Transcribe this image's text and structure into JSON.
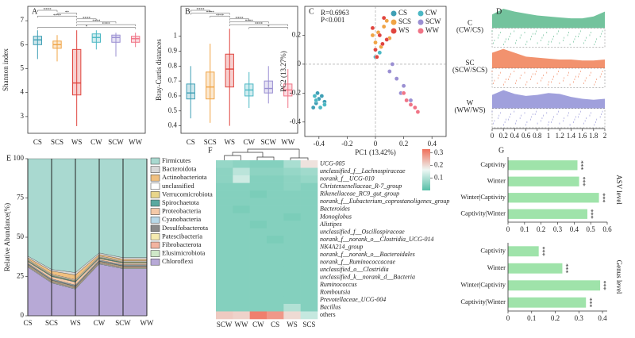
{
  "chart_data": [
    {
      "type": "box",
      "label": "A",
      "ylabel": "Shannon index",
      "categories": [
        "CS",
        "SCS",
        "WS",
        "CW",
        "SCW",
        "WW"
      ],
      "colors": [
        "#3f9fb5",
        "#f0a445",
        "#e0453f",
        "#4cb8c4",
        "#9a8fd2",
        "#f07486"
      ],
      "ylim": [
        2.3,
        7.6
      ],
      "yticks": [
        3,
        4,
        5,
        6,
        7
      ],
      "boxes": [
        {
          "low": 5.4,
          "q1": 6.0,
          "median": 6.2,
          "q3": 6.35,
          "high": 6.6
        },
        {
          "low": 5.3,
          "q1": 5.85,
          "median": 6.0,
          "q3": 6.15,
          "high": 6.4
        },
        {
          "low": 2.6,
          "q1": 3.9,
          "median": 4.4,
          "q3": 5.8,
          "high": 6.6
        },
        {
          "low": 5.8,
          "q1": 6.1,
          "median": 6.3,
          "q3": 6.45,
          "high": 6.6
        },
        {
          "low": 5.5,
          "q1": 6.1,
          "median": 6.3,
          "q3": 6.4,
          "high": 6.5
        },
        {
          "low": 5.9,
          "q1": 6.1,
          "median": 6.25,
          "q3": 6.35,
          "high": 6.5
        }
      ],
      "brackets": [
        {
          "between": [
            0,
            1
          ],
          "label": "****"
        },
        {
          "between": [
            1,
            2
          ],
          "label": "**"
        },
        {
          "between": [
            0,
            2
          ],
          "label": "****"
        },
        {
          "between": [
            2,
            3
          ],
          "label": "****"
        },
        {
          "between": [
            2,
            4
          ],
          "label": "****"
        },
        {
          "between": [
            2,
            5
          ],
          "label": "****"
        },
        {
          "between": [
            0,
            5
          ],
          "label": "*"
        }
      ]
    },
    {
      "type": "box",
      "label": "B",
      "ylabel": "Bray-Curtis distances",
      "categories": [
        "CS",
        "SCS",
        "WS",
        "CW",
        "SCW",
        "WW"
      ],
      "colors": [
        "#3f9fb5",
        "#f0a445",
        "#e0453f",
        "#4cb8c4",
        "#9a8fd2",
        "#f07486"
      ],
      "ylim": [
        0.35,
        1.2
      ],
      "yticks": [
        0.4,
        0.5,
        0.6,
        0.7,
        0.8,
        0.9,
        1
      ],
      "boxes": [
        {
          "low": 0.45,
          "q1": 0.58,
          "median": 0.62,
          "q3": 0.68,
          "high": 0.8
        },
        {
          "low": 0.42,
          "q1": 0.58,
          "median": 0.66,
          "q3": 0.76,
          "high": 0.95
        },
        {
          "low": 0.4,
          "q1": 0.66,
          "median": 0.78,
          "q3": 0.88,
          "high": 1.05
        },
        {
          "low": 0.52,
          "q1": 0.6,
          "median": 0.64,
          "q3": 0.68,
          "high": 0.76
        },
        {
          "low": 0.55,
          "q1": 0.62,
          "median": 0.65,
          "q3": 0.7,
          "high": 0.8
        },
        {
          "low": 0.52,
          "q1": 0.6,
          "median": 0.64,
          "q3": 0.68,
          "high": 0.78
        }
      ],
      "brackets": [
        {
          "between": [
            0,
            1
          ],
          "label": "****"
        },
        {
          "between": [
            0,
            2
          ],
          "label": "****"
        },
        {
          "between": [
            1,
            2
          ],
          "label": "****"
        },
        {
          "between": [
            2,
            3
          ],
          "label": "****"
        },
        {
          "between": [
            2,
            4
          ],
          "label": "****"
        },
        {
          "between": [
            2,
            5
          ],
          "label": "****"
        },
        {
          "between": [
            3,
            5
          ],
          "label": "*"
        }
      ]
    },
    {
      "type": "scatter",
      "label": "C",
      "xlabel": "PC1 (13.42%)",
      "ylabel": "PC2 (13.27%)",
      "annotations": [
        "R=0.6963",
        "P<0.001"
      ],
      "xlim": [
        -0.5,
        0.5
      ],
      "ylim": [
        -0.5,
        0.4
      ],
      "xticks": [
        -0.4,
        -0.2,
        0,
        0.2,
        0.4
      ],
      "yticks": [
        -0.4,
        -0.2,
        0,
        0.2
      ],
      "series": [
        {
          "name": "CS",
          "color": "#3f9fb5",
          "x": [
            -0.42,
            -0.4,
            -0.44,
            -0.38,
            -0.41,
            -0.36
          ],
          "y": [
            -0.27,
            -0.24,
            -0.3,
            -0.22,
            -0.2,
            -0.26
          ]
        },
        {
          "name": "CW",
          "color": "#4cb8c4",
          "x": [
            -0.39,
            -0.42,
            -0.36,
            -0.43,
            0.0,
            0.03
          ],
          "y": [
            -0.3,
            -0.25,
            -0.28,
            -0.22,
            0.05,
            0.08
          ]
        },
        {
          "name": "SCS",
          "color": "#f0a445",
          "x": [
            0.02,
            0.06,
            0.1,
            0.0,
            0.08,
            0.04,
            -0.02
          ],
          "y": [
            0.22,
            0.26,
            0.18,
            0.15,
            0.3,
            0.12,
            0.2
          ]
        },
        {
          "name": "SCW",
          "color": "#9a8fd2",
          "x": [
            0.1,
            0.15,
            0.2,
            0.12,
            0.18,
            0.25
          ],
          "y": [
            -0.05,
            -0.1,
            -0.15,
            0.0,
            -0.2,
            -0.25
          ]
        },
        {
          "name": "WS",
          "color": "#e0453f",
          "x": [
            0.0,
            0.05,
            -0.02,
            0.03,
            0.08,
            0.01,
            0.06
          ],
          "y": [
            0.1,
            0.14,
            0.25,
            0.2,
            0.17,
            0.05,
            0.32
          ]
        },
        {
          "name": "WW",
          "color": "#f07486",
          "x": [
            0.2,
            0.25,
            0.3,
            0.22,
            0.28
          ],
          "y": [
            -0.2,
            -0.28,
            -0.33,
            -0.25,
            -0.3
          ]
        }
      ]
    },
    {
      "type": "ridge",
      "label": "D",
      "x": [
        0,
        0.2,
        0.4,
        0.6,
        0.8,
        1,
        1.2,
        1.4,
        1.6,
        1.8,
        2
      ],
      "xlim": [
        0,
        2
      ],
      "xticks": [
        0,
        0.2,
        0.4,
        0.6,
        0.8,
        1,
        1.2,
        1.4,
        1.6,
        1.8,
        2
      ],
      "ylim": [
        0,
        1
      ],
      "series": [
        {
          "label_lines": [
            "C",
            "(CW/CS)"
          ],
          "color": "#5bb98c",
          "values": [
            0.7,
            1.0,
            0.85,
            0.75,
            0.65,
            0.6,
            0.55,
            0.5,
            0.5,
            0.6,
            0.85
          ]
        },
        {
          "label_lines": [
            "SC",
            "(SCW/SCS)"
          ],
          "color": "#f07f55",
          "values": [
            0.8,
            1.0,
            0.8,
            0.6,
            0.55,
            0.5,
            0.45,
            0.45,
            0.4,
            0.4,
            0.45
          ]
        },
        {
          "label_lines": [
            "W",
            "(WW/WS)"
          ],
          "color": "#8f8fd6",
          "values": [
            0.7,
            0.95,
            0.75,
            0.65,
            0.7,
            0.8,
            0.75,
            0.6,
            0.5,
            0.45,
            0.5
          ]
        }
      ]
    },
    {
      "type": "stacked_area",
      "label": "E",
      "ylabel": "Relative Abundance(%)",
      "categories": [
        "CS",
        "SCS",
        "WS",
        "CW",
        "SCW",
        "WW"
      ],
      "ylim": [
        0,
        100
      ],
      "yticks": [
        0,
        25,
        50,
        75,
        100
      ],
      "series": [
        {
          "name": "Firmicutes",
          "color": "#a9d9d0",
          "values": [
            62,
            70.5,
            72.5,
            60,
            63,
            63
          ]
        },
        {
          "name": "Bacteroidota",
          "color": "#d9d9d9",
          "values": [
            1,
            1,
            1.5,
            1,
            1,
            1
          ]
        },
        {
          "name": "Actinobacteriota",
          "color": "#f0c080",
          "values": [
            1,
            2,
            3,
            1,
            1,
            1
          ]
        },
        {
          "name": "unclassified",
          "color": "#ffffff",
          "values": [
            0.5,
            0.5,
            0.5,
            0.5,
            0.5,
            0.5
          ]
        },
        {
          "name": "Verrucomicrobiota",
          "color": "#e8d58a",
          "values": [
            0.5,
            0.5,
            0.5,
            0.5,
            0.5,
            0.5
          ]
        },
        {
          "name": "Spirochaetota",
          "color": "#5aa9a0",
          "values": [
            0.5,
            0.5,
            0.5,
            0.5,
            0.5,
            0.5
          ]
        },
        {
          "name": "Proteobacteria",
          "color": "#f4c9a8",
          "values": [
            1,
            1.5,
            2,
            1,
            1,
            1
          ]
        },
        {
          "name": "Cyanobacteria",
          "color": "#b8d8e8",
          "values": [
            0.5,
            0.5,
            0.5,
            0.5,
            0.5,
            0.5
          ]
        },
        {
          "name": "Desulfobacterota",
          "color": "#8a8a8a",
          "values": [
            0.5,
            0.5,
            0.5,
            0.5,
            0.5,
            0.5
          ]
        },
        {
          "name": "Patescibacteria",
          "color": "#f5ebb0",
          "values": [
            0.5,
            0.5,
            0.5,
            0.5,
            0.5,
            0.5
          ]
        },
        {
          "name": "Fibrobacterota",
          "color": "#f2b3a0",
          "values": [
            0.5,
            0.5,
            0.5,
            0.5,
            0.5,
            0.5
          ]
        },
        {
          "name": "Elusimicrobiota",
          "color": "#cfe8c8",
          "values": [
            0.5,
            0.5,
            0.5,
            0.5,
            0.5,
            0.5
          ]
        },
        {
          "name": "Chloroflexi",
          "color": "#b7a9d6",
          "values": [
            31,
            21,
            17,
            33,
            30,
            30
          ]
        }
      ]
    },
    {
      "type": "heatmap",
      "label": "F",
      "columns": [
        "SCW",
        "WW",
        "CW",
        "CS",
        "WS",
        "SCS"
      ],
      "rows": [
        "UCG-005",
        "unclassified_f__Lachnospiraceae",
        "norank_f__UCG-010",
        "Christensenellaceae_R-7_group",
        "Rikenellaceae_RC9_gut_group",
        "norank_f__Eubacterium_coprostanoligenes_group",
        "Bacteroides",
        "Monoglobus",
        "Alistipes",
        "unclassified_f__Oscillospiraceae",
        "norank_f__norank_o__Clostridia_UCG-014",
        "NK4A214_group",
        "norank_f__norank_o__Bacteroidales",
        "norank_f__Ruminococcaceae",
        "unclassified_o__Clostridia",
        "unclassified_k__norank_d__Bacteria",
        "Ruminococcus",
        "Romboutsia",
        "Prevotellaceae_UCG-004",
        "Bacillus",
        "others"
      ],
      "values": [
        [
          0.07,
          0.06,
          0.05,
          0.05,
          0.09,
          0.19
        ],
        [
          0.06,
          0.11,
          0.06,
          0.06,
          0.07,
          0.08
        ],
        [
          0.06,
          0.13,
          0.05,
          0.05,
          0.06,
          0.07
        ],
        [
          0.05,
          0.05,
          0.05,
          0.05,
          0.06,
          0.05
        ],
        [
          0.05,
          0.05,
          0.04,
          0.05,
          0.05,
          0.05
        ],
        [
          0.05,
          0.05,
          0.05,
          0.05,
          0.05,
          0.05
        ],
        [
          0.05,
          0.04,
          0.05,
          0.05,
          0.05,
          0.05
        ],
        [
          0.05,
          0.05,
          0.05,
          0.05,
          0.04,
          0.05
        ],
        [
          0.05,
          0.05,
          0.04,
          0.05,
          0.05,
          0.05
        ],
        [
          0.05,
          0.05,
          0.05,
          0.05,
          0.05,
          0.05
        ],
        [
          0.05,
          0.05,
          0.05,
          0.04,
          0.05,
          0.05
        ],
        [
          0.05,
          0.05,
          0.05,
          0.05,
          0.05,
          0.05
        ],
        [
          0.05,
          0.05,
          0.05,
          0.05,
          0.05,
          0.05
        ],
        [
          0.05,
          0.05,
          0.05,
          0.05,
          0.05,
          0.05
        ],
        [
          0.05,
          0.05,
          0.05,
          0.05,
          0.05,
          0.05
        ],
        [
          0.05,
          0.05,
          0.05,
          0.05,
          0.05,
          0.05
        ],
        [
          0.05,
          0.05,
          0.05,
          0.05,
          0.05,
          0.05
        ],
        [
          0.05,
          0.05,
          0.05,
          0.05,
          0.05,
          0.05
        ],
        [
          0.05,
          0.05,
          0.05,
          0.05,
          0.05,
          0.05
        ],
        [
          0.05,
          0.05,
          0.05,
          0.05,
          0.1,
          0.05
        ],
        [
          0.22,
          0.21,
          0.31,
          0.28,
          0.2,
          0.12
        ]
      ],
      "zlim": [
        0,
        0.33
      ],
      "zticks": [
        0.1,
        0.2,
        0.3
      ],
      "colors": [
        "#56bfa6",
        "#eef7f4",
        "#ef6f5a"
      ]
    },
    {
      "type": "barh",
      "label": "G",
      "ylabel": "ASV level",
      "color": "#9fe3aa",
      "categories": [
        "Captivity",
        "Winter",
        "Winter|Captivity",
        "Captivity|Winter"
      ],
      "values": [
        0.42,
        0.43,
        0.55,
        0.48
      ],
      "annotations": [
        "***",
        "***",
        "***",
        "***"
      ],
      "xlim": [
        0,
        0.6
      ],
      "xticks": [
        0,
        0.1,
        0.2,
        0.3,
        0.4,
        0.5,
        0.6
      ]
    },
    {
      "type": "barh",
      "ylabel": "Genus level",
      "color": "#9fe3aa",
      "categories": [
        "Captivity",
        "Winter",
        "Winter|Captivity",
        "Captivity|Winter"
      ],
      "values": [
        0.13,
        0.23,
        0.39,
        0.33
      ],
      "annotations": [
        "***",
        "***",
        "***",
        "***"
      ],
      "xlim": [
        0,
        0.42
      ],
      "xticks": [
        0,
        0.1,
        0.2,
        0.3,
        0.4
      ]
    }
  ]
}
